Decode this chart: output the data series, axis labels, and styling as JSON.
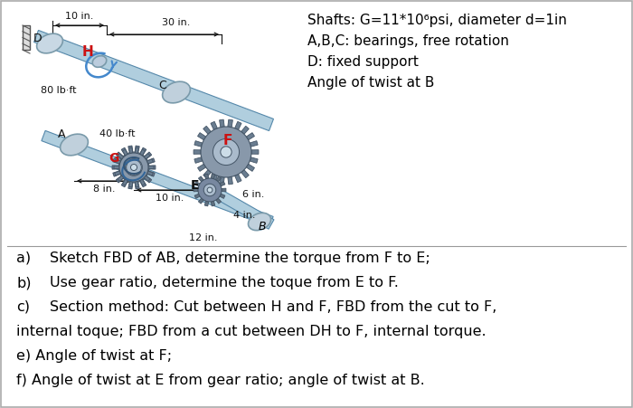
{
  "background_color": "#ffffff",
  "border_color": "#aaaaaa",
  "title_lines": [
    "Shafts: G=11*10⁶psi, diameter d=1in",
    "A,B,C: bearings, free rotation",
    "D: fixed support",
    "Angle of twist at B"
  ],
  "questions": [
    {
      "indent": true,
      "label": "a)",
      "text": "Sketch FBD of AB, determine the torque from F to E;"
    },
    {
      "indent": true,
      "label": "b)",
      "text": "Use gear ratio, determine the toque from E to F."
    },
    {
      "indent": true,
      "label": "c)",
      "text": "Section method: Cut between H and F, FBD from the cut to F,"
    },
    {
      "indent": false,
      "label": "",
      "text": "internal toque; FBD from a cut between DH to F, internal torque."
    },
    {
      "indent": false,
      "label": "",
      "text": "e) Angle of twist at F;"
    },
    {
      "indent": false,
      "label": "",
      "text": "f) Angle of twist at E from gear ratio; angle of twist at B."
    }
  ],
  "text_color": "#000000",
  "fig_width": 7.0,
  "fig_height": 4.51,
  "dpi": 100
}
